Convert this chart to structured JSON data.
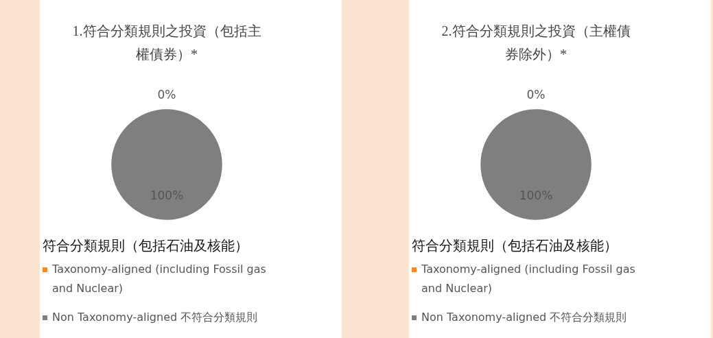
{
  "chart_data": [
    {
      "type": "pie",
      "title": "1.符合分類規則之投資（包括主權債券）*",
      "legend_title": "符合分類規則（包括石油及核能）",
      "categories": [
        "Taxonomy-aligned (including Fossil gas and Nuclear)",
        "Non Taxonomy-aligned 不符合分類規則"
      ],
      "values": [
        0,
        100
      ],
      "colors": [
        "#f4892b",
        "#7f7f7f"
      ],
      "value_labels": [
        "0%",
        "100%"
      ],
      "legend": "bottom"
    },
    {
      "type": "pie",
      "title": "2.符合分類規則之投資（主權債券除外）*",
      "legend_title": "符合分類規則（包括石油及核能）",
      "categories": [
        "Taxonomy-aligned (including Fossil gas and Nuclear)",
        "Non Taxonomy-aligned 不符合分類規則"
      ],
      "values": [
        0,
        100
      ],
      "colors": [
        "#f4892b",
        "#7f7f7f"
      ],
      "value_labels": [
        "0%",
        "100%"
      ],
      "legend": "bottom"
    }
  ]
}
